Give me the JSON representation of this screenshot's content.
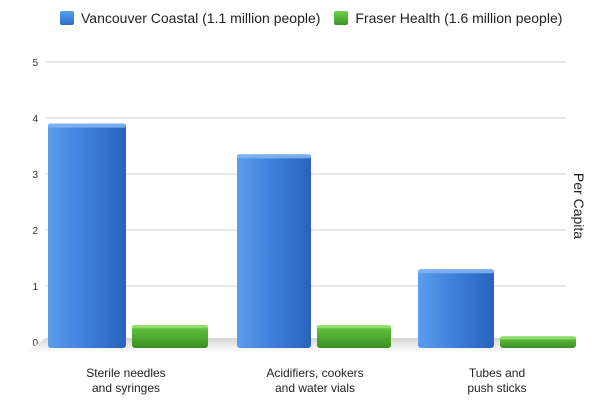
{
  "chart_data": {
    "type": "bar",
    "categories": [
      [
        "Sterile needles",
        "and syringes"
      ],
      [
        "Acidifiers, cookers",
        "and water vials"
      ],
      [
        "Tubes and",
        "push sticks"
      ]
    ],
    "series": [
      {
        "name": "Vancouver Coastal (1.1 million people)",
        "color": "#3c7fdc",
        "values": [
          3.9,
          3.35,
          1.3
        ]
      },
      {
        "name": "Fraser Health (1.6 million people)",
        "color": "#4caf2d",
        "values": [
          0.3,
          0.3,
          0.1
        ]
      }
    ],
    "ylabel": "Per Capita",
    "ylim": [
      0,
      5
    ],
    "yticks": [
      0,
      1,
      2,
      3,
      4,
      5
    ],
    "grid": true,
    "legend": "top-left"
  }
}
